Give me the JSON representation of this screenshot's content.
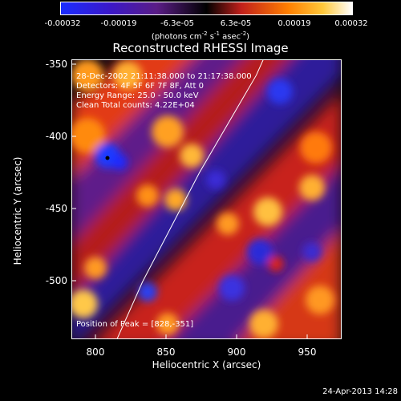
{
  "colorbar": {
    "ticks": [
      "-0.00032",
      "-0.00019",
      "-6.3e-05",
      "6.3e-05",
      "0.00019",
      "0.00032"
    ],
    "units_prefix": "(photons cm",
    "units_exp1": "-2",
    "units_mid": " s",
    "units_exp2": "-1",
    "units_mid2": " asec",
    "units_exp3": "-2",
    "units_suffix": ")"
  },
  "chart_data": {
    "type": "heatmap",
    "title": "Reconstructed RHESSI Image",
    "xlabel": "Heliocentric X (arcsec)",
    "ylabel": "Heliocentric Y (arcsec)",
    "xlim": [
      780,
      970
    ],
    "ylim": [
      -540,
      -345
    ],
    "xticks": [
      "800",
      "850",
      "900",
      "950"
    ],
    "yticks": [
      "-350",
      "-400",
      "-450",
      "-500"
    ],
    "color_range": [
      -0.00032,
      0.00032
    ],
    "peak": [
      828,
      -351
    ],
    "limb_x": [
      812,
      830,
      850,
      870,
      890,
      910,
      915
    ],
    "limb_y": [
      -540,
      -500,
      -462,
      -424,
      -390,
      -356,
      -345
    ]
  },
  "annotations": {
    "time": "28-Dec-2002 21:11:38.000 to 21:17:38.000",
    "detectors": "Detectors: 4F 5F 6F 7F 8F, Att 0",
    "energy": "Energy Range: 25.0 - 50.0 keV",
    "clean": "Clean     Total counts: 4.22E+04",
    "peak": "Position of Peak = [828,-351]"
  },
  "footer": "24-Apr-2013 14:28"
}
